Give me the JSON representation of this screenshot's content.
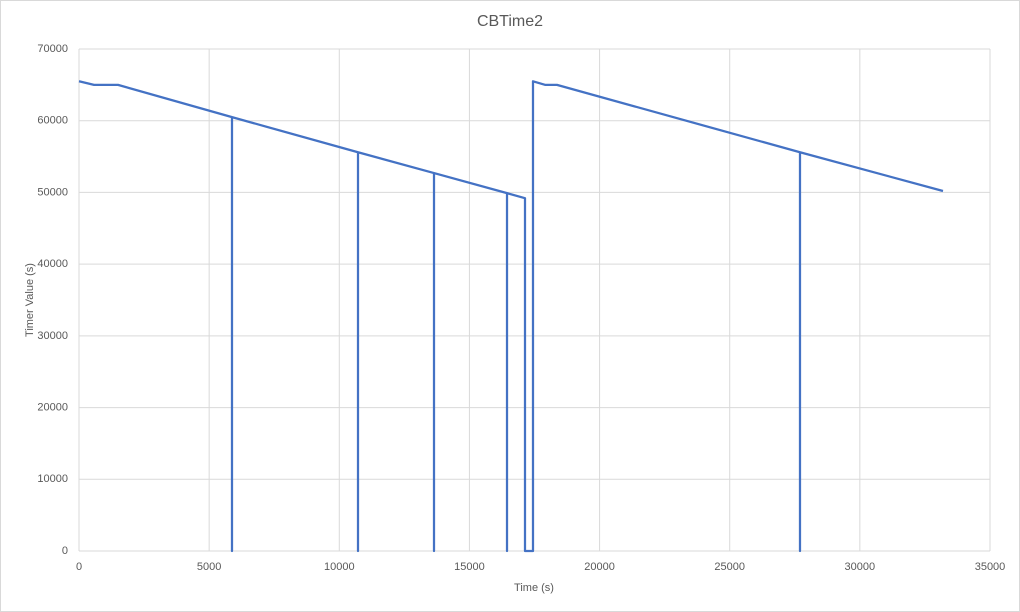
{
  "chart_data": {
    "type": "line",
    "title": "CBTime2",
    "x_label": "Time (s)",
    "y_label": "Timer Value (s)",
    "x": [
      0,
      576,
      1500,
      5878,
      5878,
      5878,
      10719,
      10719,
      10719,
      13639,
      13639,
      13639,
      16444,
      16444,
      16444,
      17135,
      17135,
      17442,
      17442,
      17903,
      18364,
      27700,
      27700,
      27700,
      33194
    ],
    "series": [
      {
        "name": "CBTime2",
        "color": "#4472c4",
        "values": [
          65500,
          65000,
          65000,
          60500,
          0,
          60500,
          55600,
          0,
          55600,
          52700,
          0,
          52700,
          49900,
          0,
          49900,
          49200,
          0,
          0,
          65500,
          65000,
          65000,
          55600,
          0,
          55600,
          50200
        ]
      }
    ],
    "xlim": [
      0,
      35000
    ],
    "xticks": [
      0,
      5000,
      10000,
      15000,
      20000,
      25000,
      30000,
      35000
    ],
    "ylim": [
      0,
      70000
    ],
    "yticks": [
      0,
      10000,
      20000,
      30000,
      40000,
      50000,
      60000,
      70000
    ],
    "grid": true
  }
}
